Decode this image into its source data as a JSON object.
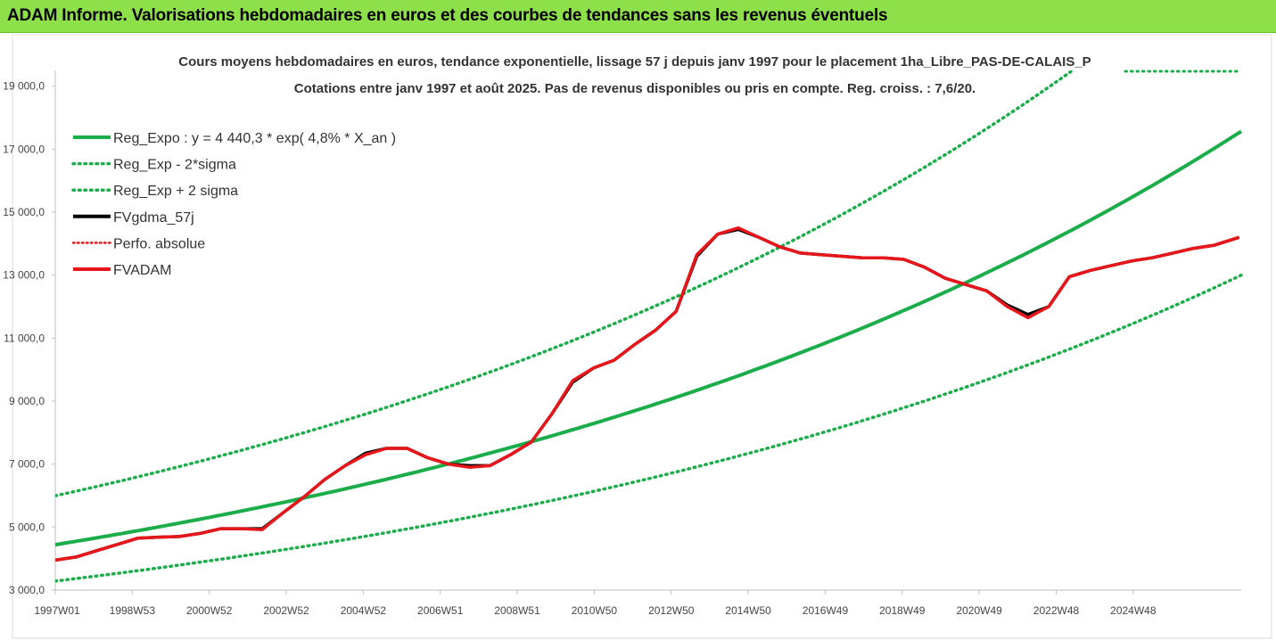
{
  "header": {
    "title": "ADAM Informe. Valorisations hebdomadaires en euros et des courbes de tendances sans les revenus éventuels"
  },
  "colors": {
    "header_bg": "#8ee04a",
    "reg_green": "#1aad4a",
    "fvadam_red": "#e8151b",
    "fvgdma_black": "#000000",
    "perfo_red": "#e8151b"
  },
  "chart_data": {
    "type": "line",
    "title_line1": "Cours moyens hebdomadaires en euros, tendance exponentielle, lissage 57 j depuis janv 1997 pour le placement 1ha_Libre_PAS-DE-CALAIS_P",
    "title_line2": "Cotations entre janv 1997 et août 2025. Pas de revenus disponibles ou pris en compte. Reg. croiss. : 7,6/20.",
    "xlabel": "",
    "ylabel": "",
    "ylim": [
      3000,
      19500
    ],
    "xlim": [
      0,
      28.65
    ],
    "y_ticks": [
      "3 000,0",
      "5 000,0",
      "7 000,0",
      "9 000,0",
      "11 000,0",
      "13 000,0",
      "15 000,0",
      "17 000,0",
      "19 000,0"
    ],
    "y_tick_values": [
      3000,
      5000,
      7000,
      9000,
      11000,
      13000,
      15000,
      17000,
      19000
    ],
    "x_ticks": [
      "1997W01",
      "1998W53",
      "2000W52",
      "2002W52",
      "2004W52",
      "2006W51",
      "2008W51",
      "2010W50",
      "2012W50",
      "2014W50",
      "2016W49",
      "2018W49",
      "2020W49",
      "2022W48",
      "2024W48"
    ],
    "x_tick_values": [
      0,
      1.86,
      3.72,
      5.58,
      7.44,
      9.3,
      11.16,
      13.02,
      14.88,
      16.74,
      18.6,
      20.46,
      22.32,
      24.18,
      26.04
    ],
    "legend": [
      {
        "name": "Reg_Expo : y = 4 440,3 * exp( 4,8% *  X_an )",
        "style": "solid-green"
      },
      {
        "name": "Reg_Exp - 2*sigma",
        "style": "dotted-green"
      },
      {
        "name": "Reg_Exp + 2 sigma",
        "style": "dotted-green"
      },
      {
        "name": "FVgdma_57j",
        "style": "solid-black"
      },
      {
        "name": "Perfo. absolue",
        "style": "dotted-red"
      },
      {
        "name": "FVADAM",
        "style": "solid-red"
      }
    ],
    "regression": {
      "a": 4440.3,
      "rate": 0.048,
      "sigma_factor_low": 0.74,
      "sigma_factor_high": 1.35
    },
    "series": [
      {
        "name": "FVADAM",
        "x": [
          0,
          0.5,
          1.0,
          1.5,
          2.0,
          2.5,
          3.0,
          3.5,
          4.0,
          4.5,
          5.0,
          5.5,
          6.0,
          6.5,
          7.0,
          7.5,
          8.0,
          8.5,
          9.0,
          9.5,
          10.0,
          10.5,
          11.0,
          11.5,
          12.0,
          12.5,
          13.0,
          13.5,
          14.0,
          14.5,
          15.0,
          15.5,
          16.0,
          16.5,
          17.0,
          17.5,
          18.0,
          18.5,
          19.0,
          19.5,
          20.0,
          20.5,
          21.0,
          21.5,
          22.0,
          22.5,
          23.0,
          23.5,
          24.0,
          24.5,
          25.0,
          25.5,
          26.0,
          26.5,
          27.0,
          27.5,
          28.0,
          28.6
        ],
        "values": [
          3950,
          4050,
          4250,
          4450,
          4650,
          4680,
          4700,
          4800,
          4950,
          4950,
          4920,
          5450,
          5950,
          6500,
          6950,
          7300,
          7500,
          7500,
          7200,
          7000,
          6900,
          6950,
          7300,
          7700,
          8600,
          9650,
          10050,
          10300,
          10800,
          11250,
          11850,
          13650,
          14300,
          14500,
          14200,
          13900,
          13700,
          13650,
          13600,
          13550,
          13550,
          13500,
          13250,
          12900,
          12700,
          12500,
          12000,
          11650,
          12000,
          12950,
          13150,
          13300,
          13450,
          13550,
          13700,
          13850,
          13950,
          14200
        ]
      },
      {
        "name": "FVgdma_57j",
        "x": [
          0,
          0.5,
          1.0,
          1.5,
          2.0,
          2.5,
          3.0,
          3.5,
          4.0,
          4.5,
          5.0,
          5.5,
          6.0,
          6.5,
          7.0,
          7.5,
          8.0,
          8.5,
          9.0,
          9.5,
          10.0,
          10.5,
          11.0,
          11.5,
          12.0,
          12.5,
          13.0,
          13.5,
          14.0,
          14.5,
          15.0,
          15.5,
          16.0,
          16.5,
          17.0,
          17.5,
          18.0,
          18.5,
          19.0,
          19.5,
          20.0,
          20.5,
          21.0,
          21.5,
          22.0,
          22.5,
          23.0,
          23.5,
          24.0,
          24.5,
          25.0,
          25.5,
          26.0,
          26.5,
          27.0,
          27.5,
          28.0,
          28.6
        ],
        "values": [
          3950,
          4050,
          4250,
          4450,
          4650,
          4680,
          4700,
          4800,
          4950,
          4950,
          4950,
          5450,
          5950,
          6500,
          6950,
          7350,
          7500,
          7500,
          7200,
          7000,
          6950,
          6950,
          7300,
          7700,
          8600,
          9600,
          10050,
          10300,
          10800,
          11250,
          11850,
          13600,
          14300,
          14450,
          14200,
          13900,
          13700,
          13650,
          13600,
          13550,
          13550,
          13500,
          13250,
          12900,
          12700,
          12500,
          12050,
          11750,
          12000,
          12950,
          13150,
          13300,
          13450,
          13550,
          13700,
          13850,
          13950,
          14200
        ]
      }
    ]
  }
}
